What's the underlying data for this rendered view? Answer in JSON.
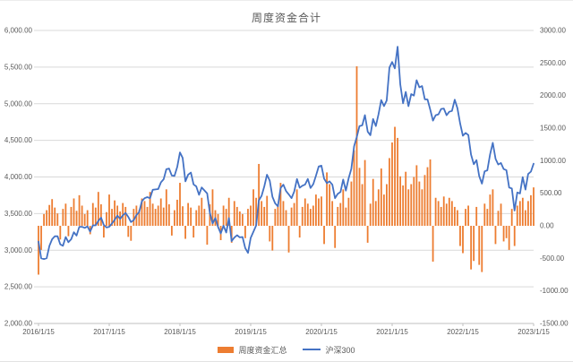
{
  "chart": {
    "title": "周度资金合计",
    "colors": {
      "bar": "#ED7D31",
      "line": "#4472C4",
      "grid": "#D9D9D9",
      "axis_line": "#BFBFBF",
      "axis_text": "#595959",
      "title_text": "#595959"
    },
    "legend": {
      "items": [
        {
          "label": "周度资金汇总",
          "type": "bar",
          "color": "#ED7D31"
        },
        {
          "label": "沪深300",
          "type": "line",
          "color": "#4472C4"
        }
      ]
    }
  },
  "chart_data": {
    "type": "combo",
    "subtype": [
      "bar",
      "line"
    ],
    "title": "周度资金合计",
    "grid": true,
    "legend_position": "bottom",
    "x": {
      "start": "2016/1/15",
      "end": "2023/1/15",
      "interval": "biweekly",
      "tick_labels": [
        "2016/1/15",
        "2017/1/15",
        "2018/1/15",
        "2019/1/15",
        "2020/1/15",
        "2021/1/15",
        "2022/1/15",
        "2023/1/15"
      ]
    },
    "left_axis": {
      "min": 2000,
      "max": 6000,
      "step": 500,
      "tick_labels": [
        "6,000.00",
        "5,500.00",
        "5,000.00",
        "4,500.00",
        "4,000.00",
        "3,500.00",
        "3,000.00",
        "2,500.00",
        "2,000.00"
      ]
    },
    "right_axis": {
      "min": -1500,
      "max": 3000,
      "step": 500,
      "tick_labels": [
        "3000.00",
        "2500.00",
        "2000.00",
        "1500.00",
        "1000.00",
        "500.00",
        "0.00",
        "-500.00",
        "-1000.00",
        "-1500.00"
      ]
    },
    "series": [
      {
        "name": "周度资金汇总",
        "type": "bar",
        "axis": "right",
        "color": "#ED7D31",
        "values": [
          -750,
          -370,
          180,
          240,
          320,
          410,
          280,
          190,
          -210,
          260,
          340,
          -160,
          290,
          420,
          230,
          470,
          310,
          180,
          240,
          -130,
          350,
          280,
          520,
          330,
          -180,
          210,
          480,
          260,
          390,
          310,
          220,
          350,
          290,
          -170,
          -230,
          260,
          310,
          240,
          420,
          380,
          290,
          520,
          340,
          260,
          310,
          420,
          280,
          560,
          330,
          -150,
          240,
          400,
          660,
          300,
          -200,
          350,
          280,
          -180,
          240,
          310,
          430,
          260,
          -290,
          330,
          560,
          240,
          180,
          -220,
          310,
          260,
          430,
          -260,
          380,
          290,
          220,
          180,
          -190,
          260,
          310,
          560,
          430,
          950,
          380,
          290,
          460,
          -240,
          -380,
          260,
          320,
          660,
          380,
          240,
          -410,
          280,
          350,
          560,
          -180,
          290,
          420,
          340,
          260,
          310,
          480,
          420,
          450,
          -280,
          820,
          640,
          380,
          -340,
          290,
          350,
          560,
          280,
          430,
          680,
          1160,
          2450,
          890,
          640,
          1010,
          -260,
          340,
          720,
          380,
          560,
          880,
          480,
          640,
          1040,
          1280,
          1520,
          1350,
          760,
          620,
          830,
          560,
          640,
          750,
          930,
          680,
          560,
          780,
          900,
          1020,
          -550,
          430,
          380,
          290,
          450,
          340,
          430,
          380,
          290,
          240,
          -310,
          -420,
          260,
          310,
          -670,
          -540,
          290,
          -600,
          -710,
          340,
          260,
          480,
          560,
          -280,
          230,
          340,
          -240,
          -190,
          -370,
          260,
          -310,
          310,
          380,
          430,
          240,
          380,
          470,
          590
        ]
      },
      {
        "name": "沪深300",
        "type": "line",
        "axis": "left",
        "color": "#4472C4",
        "values": [
          3118,
          2890,
          2880,
          2890,
          3060,
          3150,
          3190,
          3190,
          3080,
          3060,
          3180,
          3110,
          3150,
          3245,
          3200,
          3320,
          3320,
          3305,
          3325,
          3255,
          3340,
          3340,
          3400,
          3445,
          3345,
          3310,
          3320,
          3365,
          3415,
          3470,
          3430,
          3475,
          3510,
          3455,
          3385,
          3410,
          3480,
          3520,
          3670,
          3710,
          3725,
          3710,
          3825,
          3830,
          3835,
          3925,
          3970,
          4105,
          4115,
          4020,
          4015,
          4140,
          4335,
          4260,
          3940,
          4030,
          4060,
          3898,
          3871,
          3756,
          3857,
          3816,
          3775,
          3510,
          3365,
          3440,
          3320,
          3229,
          3334,
          3242,
          3439,
          3124,
          3173,
          3205,
          3175,
          3180,
          3030,
          2964,
          3168,
          3250,
          3338,
          3680,
          3743,
          3872,
          4031,
          3950,
          3730,
          3640,
          3600,
          3850,
          3895,
          3808,
          3763,
          3711,
          3800,
          3972,
          3853,
          3880,
          3897,
          3973,
          3850,
          3902,
          4017,
          4144,
          4154,
          3977,
          3916,
          3940,
          3895,
          3710,
          3769,
          3795,
          3964,
          3814,
          3982,
          4110,
          4420,
          4545,
          4695,
          4704,
          4844,
          4619,
          4570,
          4792,
          4695,
          4857,
          5049,
          4968,
          5043,
          5495,
          5570,
          5483,
          5779,
          5262,
          5007,
          5161,
          4966,
          5131,
          5111,
          5321,
          5224,
          5240,
          5060,
          5058,
          4921,
          4769,
          4843,
          4855,
          4929,
          4935,
          4843,
          4890,
          4901,
          5055,
          4940,
          4726,
          4563,
          4601,
          4573,
          4306,
          4174,
          4230,
          4013,
          3909,
          4077,
          4090,
          4309,
          4466,
          4248,
          4170,
          4191,
          4108,
          4093,
          3856,
          3842,
          3541,
          3788,
          3775,
          3998,
          3828,
          4040,
          4074,
          4181
        ]
      }
    ]
  }
}
